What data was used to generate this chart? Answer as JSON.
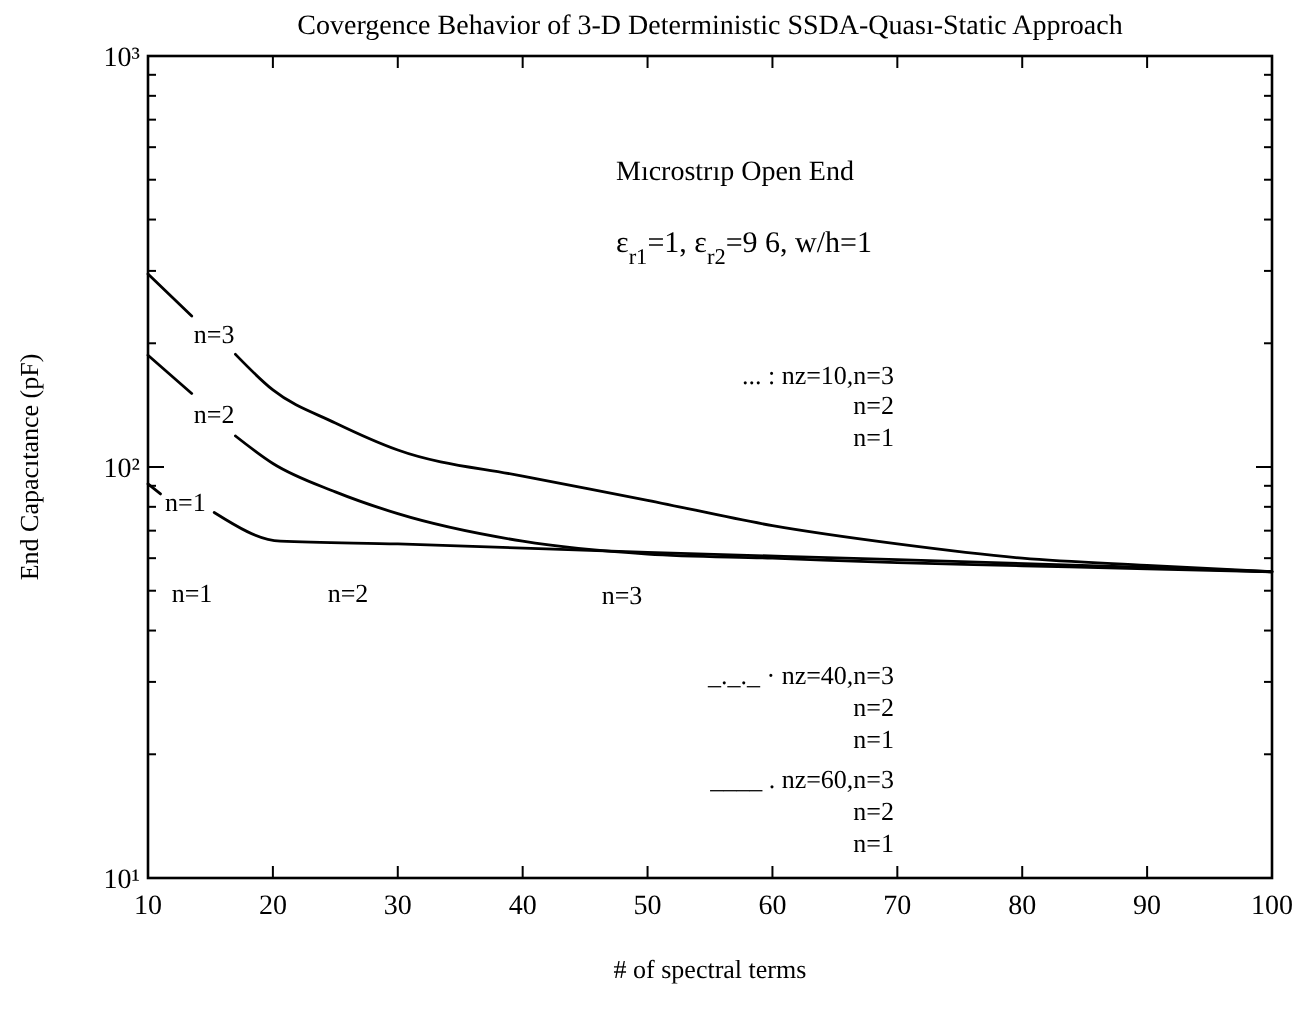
{
  "chart_data": {
    "type": "line",
    "title": "Covergence Behavior of 3-D Deterministic SSDA-Quası-Static Approach",
    "xlabel": "# of spectral terms",
    "ylabel": "End Capacıtance (pF)",
    "log": "y",
    "grid": false,
    "marker": "none",
    "line_style": "solid",
    "xlim": [
      10,
      100
    ],
    "xticks": [
      10,
      20,
      30,
      40,
      50,
      60,
      70,
      80,
      90,
      100
    ],
    "ylim": [
      10,
      1000
    ],
    "yticks": [
      {
        "value": 10,
        "label": "10¹"
      },
      {
        "value": 20,
        "label": null
      },
      {
        "value": 30,
        "label": null
      },
      {
        "value": 40,
        "label": null
      },
      {
        "value": 50,
        "label": null
      },
      {
        "value": 60,
        "label": null
      },
      {
        "value": 70,
        "label": null
      },
      {
        "value": 80,
        "label": null
      },
      {
        "value": 90,
        "label": null
      },
      {
        "value": 100,
        "label": "10²"
      },
      {
        "value": 200,
        "label": null
      },
      {
        "value": 300,
        "label": null
      },
      {
        "value": 400,
        "label": null
      },
      {
        "value": 500,
        "label": null
      },
      {
        "value": 600,
        "label": null
      },
      {
        "value": 700,
        "label": null
      },
      {
        "value": 800,
        "label": null
      },
      {
        "value": 900,
        "label": null
      },
      {
        "value": 1000,
        "label": "10³"
      }
    ],
    "series": [
      {
        "name": "n=3",
        "color": "#000000",
        "x": [
          10,
          13.5,
          15.3,
          17,
          20,
          25,
          30,
          40,
          50,
          60,
          70,
          80,
          90,
          100
        ],
        "values": [
          295,
          233,
          null,
          188,
          154,
          128,
          110,
          95,
          83,
          72,
          65,
          60,
          57.6,
          55.6
        ]
      },
      {
        "name": "n=2",
        "color": "#000000",
        "x": [
          10,
          13.5,
          15.3,
          17,
          20,
          25,
          30,
          40,
          50,
          60,
          70,
          80,
          90,
          100
        ],
        "values": [
          187,
          151,
          null,
          119,
          102,
          87,
          77,
          66,
          61.4,
          60,
          58.5,
          57.5,
          56.5,
          55.6
        ]
      },
      {
        "name": "n=1",
        "color": "#000000",
        "x": [
          10,
          11,
          13,
          15.3,
          20.6,
          30,
          50,
          70,
          90,
          100
        ],
        "values": [
          91,
          86,
          null,
          77.5,
          66,
          65,
          62,
          59.5,
          57,
          55.6
        ]
      }
    ],
    "annotations": [
      "Mıcrostrıp Open End",
      "ε$_{r1}$=1, ε$_{r2}$=9 6, w/h=1",
      "... : nz=10,n=3",
      "n=2",
      "n=1",
      "_._._ · nz=40,n=3",
      "n=2",
      "n=1",
      "____ . nz=60,n=3",
      "n=2",
      "n=1",
      "n=1",
      "n=2",
      "n=3"
    ]
  }
}
